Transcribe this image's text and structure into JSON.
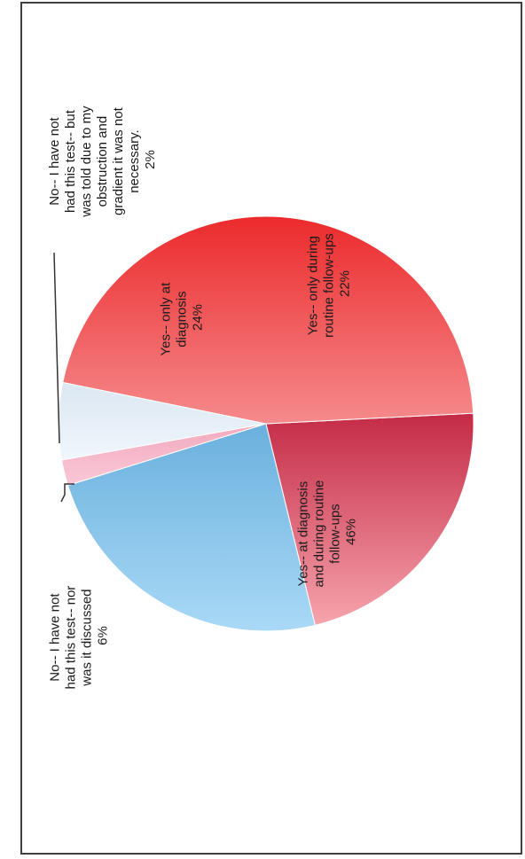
{
  "chart_data": {
    "type": "pie",
    "title": "",
    "orientation_note_hidden": "",
    "slices": [
      {
        "label": [
          "No-- I have not",
          "had this test-- nor",
          "was it discussed",
          "6%"
        ],
        "value": 6,
        "color": "#e2ecf5"
      },
      {
        "label": [
          "No-- I have not",
          "had this test-- but",
          "was told due to my",
          "obstruction and",
          "gradient it was not",
          "necessary.",
          "2%"
        ],
        "value": 2,
        "color": "#f6b9cb"
      },
      {
        "label": [
          "Yes-- only at",
          "diagnosis",
          "24%"
        ],
        "value": 24,
        "color": "#74b8e4"
      },
      {
        "label": [
          "Yes-- only during",
          "routine follow-ups",
          "22%"
        ],
        "value": 22,
        "color": "#e7707e"
      },
      {
        "label": [
          "Yes-- at diagnosis",
          "and during routine",
          "follow-ups",
          "46%"
        ],
        "value": 46,
        "color": "#ee3e40"
      }
    ]
  }
}
